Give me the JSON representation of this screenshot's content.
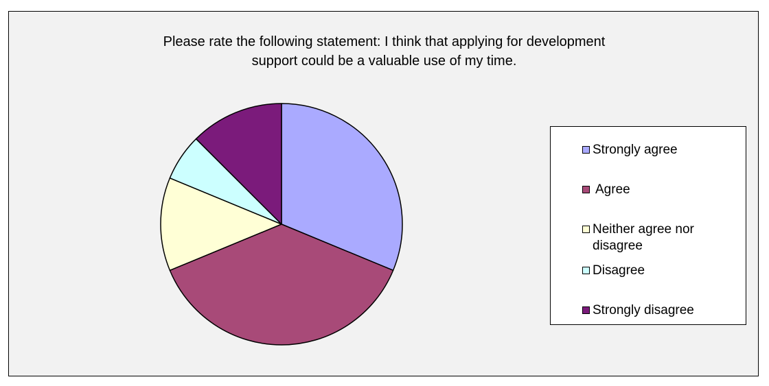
{
  "chart_data": {
    "type": "pie",
    "title": "Please rate the following statement: I think that applying for development support could be a valuable use of my time.",
    "title_lines": [
      "Please rate the following statement: I think that applying for development",
      "support could be a valuable use of my time."
    ],
    "categories": [
      "Strongly agree",
      "Agree",
      "Neither agree nor disagree",
      "Disagree",
      "Strongly disagree"
    ],
    "values": [
      31.25,
      37.5,
      12.5,
      6.25,
      12.5
    ],
    "colors": [
      "#aaaaff",
      "#a84a78",
      "#ffffd6",
      "#ccffff",
      "#7b1b7b"
    ],
    "start_angle_deg": 0,
    "direction": "clockwise",
    "legend": {
      "position": "right",
      "items": [
        {
          "label": "Strongly agree",
          "color": "#aaaaff"
        },
        {
          "label": "Agree",
          "color": "#a84a78"
        },
        {
          "label": "Neither agree nor disagree",
          "color": "#ffffd6"
        },
        {
          "label": "Disagree",
          "color": "#ccffff"
        },
        {
          "label": "Strongly disagree",
          "color": "#7b1b7b"
        }
      ]
    },
    "background_color": "#f2f2f2"
  }
}
